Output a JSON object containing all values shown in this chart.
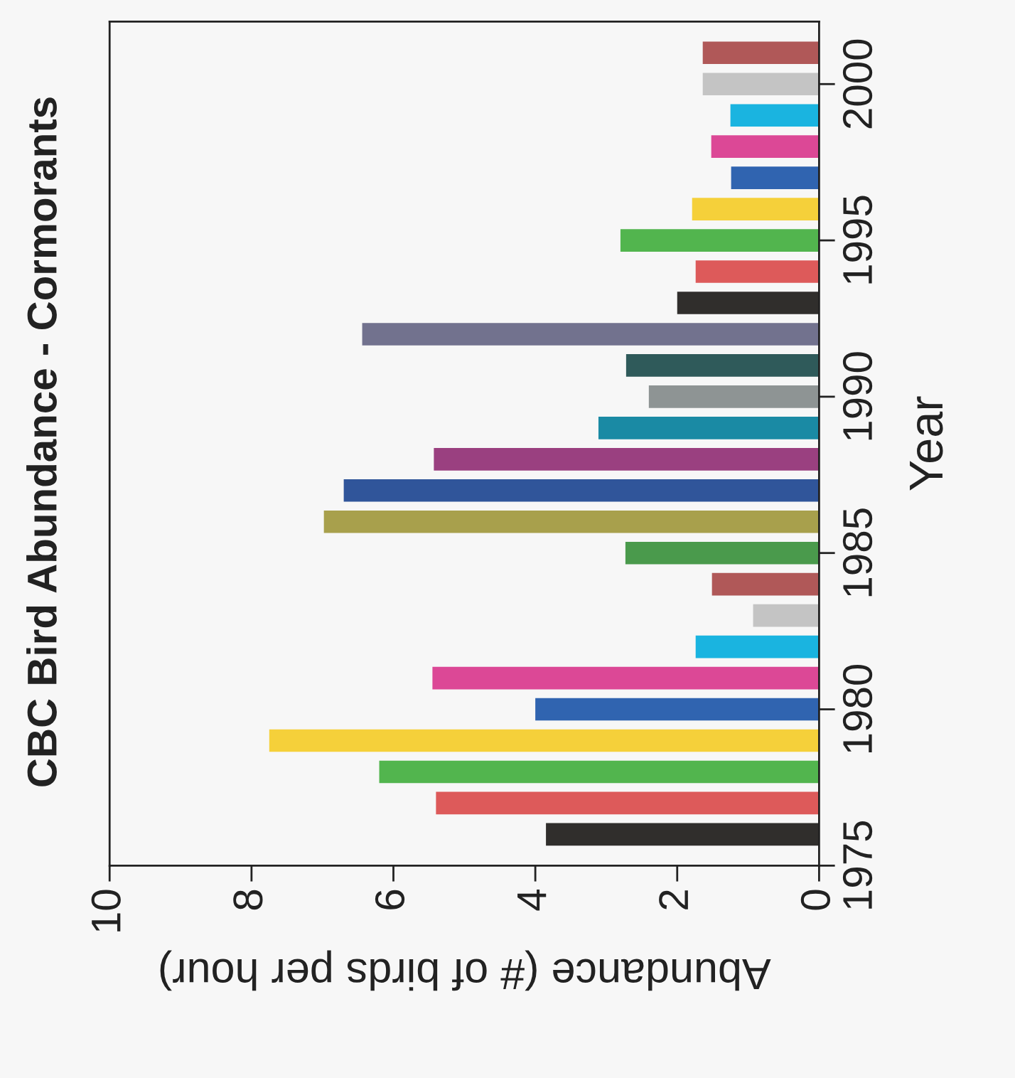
{
  "chart_data": {
    "type": "bar",
    "orientation": "horizontal",
    "title": "CBC Bird Abundance - Cormorants",
    "xlabel": "Abundance (# of birds per hour)",
    "ylabel": "Year",
    "x": [
      1976,
      1977,
      1978,
      1979,
      1980,
      1981,
      1982,
      1983,
      1984,
      1985,
      1986,
      1987,
      1988,
      1989,
      1990,
      1991,
      1992,
      1993,
      1994,
      1995,
      1996,
      1997,
      1998,
      1999,
      2000,
      2001
    ],
    "values": [
      3.85,
      5.4,
      6.2,
      7.75,
      4.0,
      5.45,
      1.74,
      0.93,
      1.51,
      2.73,
      6.98,
      6.7,
      5.43,
      3.11,
      2.4,
      2.72,
      6.44,
      2.0,
      1.74,
      2.8,
      1.79,
      1.24,
      1.52,
      1.25,
      1.64,
      1.64
    ],
    "colors": [
      "#302e2c",
      "#dd5a5a",
      "#52b54e",
      "#f5d03a",
      "#3064b0",
      "#dc4896",
      "#1ab4e0",
      "#c4c4c4",
      "#b05858",
      "#4a9a4c",
      "#a8a04c",
      "#30559a",
      "#9a4080",
      "#1a8aa4",
      "#8e9494",
      "#2f5a5a",
      "#72728e",
      "#302e2c",
      "#dd5a5a",
      "#52b54e",
      "#f5d03a",
      "#3064b0",
      "#dc4896",
      "#1ab4e0",
      "#c4c4c4",
      "#b05858"
    ],
    "xlim": [
      10,
      0
    ],
    "xticks": [
      0,
      2,
      4,
      6,
      8,
      10
    ],
    "ylim": [
      1975,
      2002
    ],
    "yticks": [
      1975,
      1980,
      1985,
      1990,
      1995,
      2000
    ],
    "grid": false
  }
}
